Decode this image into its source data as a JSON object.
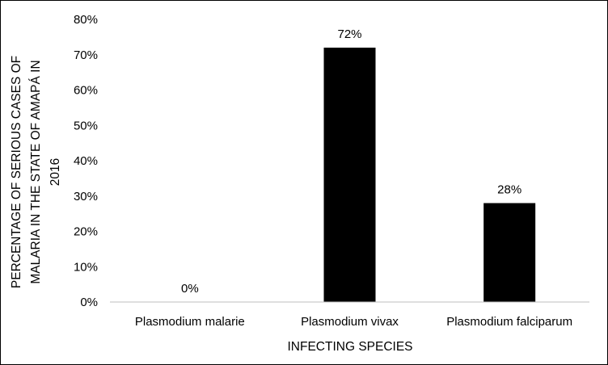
{
  "chart_data": {
    "type": "bar",
    "categories": [
      "Plasmodium malarie",
      "Plasmodium vivax",
      "Plasmodium falciparum"
    ],
    "values": [
      0,
      72,
      28
    ],
    "data_labels": [
      "0%",
      "72%",
      "28%"
    ],
    "xlabel": "INFECTING SPECIES",
    "ylabel_lines": [
      "PERCENTAGE OF SERIOUS CASES OF",
      "MALARIA IN THE STATE OF AMAPÁ IN",
      "2016"
    ],
    "ylim": [
      0,
      80
    ],
    "y_ticks": [
      0,
      10,
      20,
      30,
      40,
      50,
      60,
      70,
      80
    ],
    "y_tick_labels": [
      "0%",
      "10%",
      "20%",
      "30%",
      "40%",
      "50%",
      "60%",
      "70%",
      "80%"
    ],
    "grid": false,
    "legend": "none",
    "bar_color": "#000000"
  }
}
